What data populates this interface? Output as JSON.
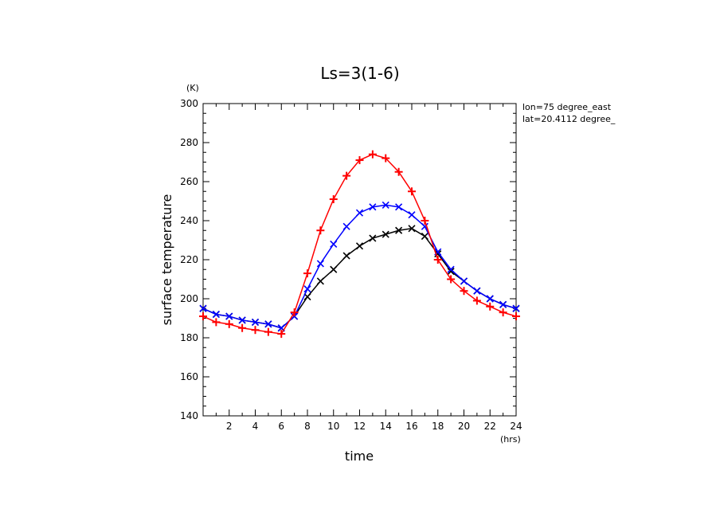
{
  "chart_data": {
    "type": "line",
    "title": "Ls=3(1-6)",
    "xlabel": "time",
    "ylabel": "surface temperature",
    "x_unit": "(hrs)",
    "y_unit": "(K)",
    "annotations": [
      "lon=75 degree_east",
      "lat=20.4112 degree_"
    ],
    "xlim": [
      0,
      24
    ],
    "ylim": [
      140,
      300
    ],
    "x_ticks": [
      2,
      4,
      6,
      8,
      10,
      12,
      14,
      16,
      18,
      20,
      22,
      24
    ],
    "y_ticks": [
      140,
      160,
      180,
      200,
      220,
      240,
      260,
      280,
      300
    ],
    "x": [
      0,
      1,
      2,
      3,
      4,
      5,
      6,
      7,
      8,
      9,
      10,
      11,
      12,
      13,
      14,
      15,
      16,
      17,
      18,
      19,
      20,
      21,
      22,
      23,
      24
    ],
    "series": [
      {
        "color": "#000000",
        "marker": "x",
        "values": [
          195,
          192,
          191,
          189,
          188,
          187,
          185,
          191,
          201,
          209,
          215,
          222,
          227,
          231,
          233,
          235,
          236,
          232,
          223,
          214,
          209,
          204,
          200,
          197,
          195
        ]
      },
      {
        "color": "#0000ff",
        "marker": "x",
        "values": [
          195,
          192,
          191,
          189,
          188,
          187,
          185,
          191,
          205,
          218,
          228,
          237,
          244,
          247,
          248,
          247,
          243,
          237,
          224,
          215,
          209,
          204,
          200,
          197,
          195
        ]
      },
      {
        "color": "#ff0000",
        "marker": "+",
        "values": [
          191,
          188,
          187,
          185,
          184,
          183,
          182,
          193,
          213,
          235,
          251,
          263,
          271,
          274,
          272,
          265,
          255,
          240,
          220,
          210,
          204,
          199,
          196,
          193,
          191
        ]
      }
    ]
  }
}
